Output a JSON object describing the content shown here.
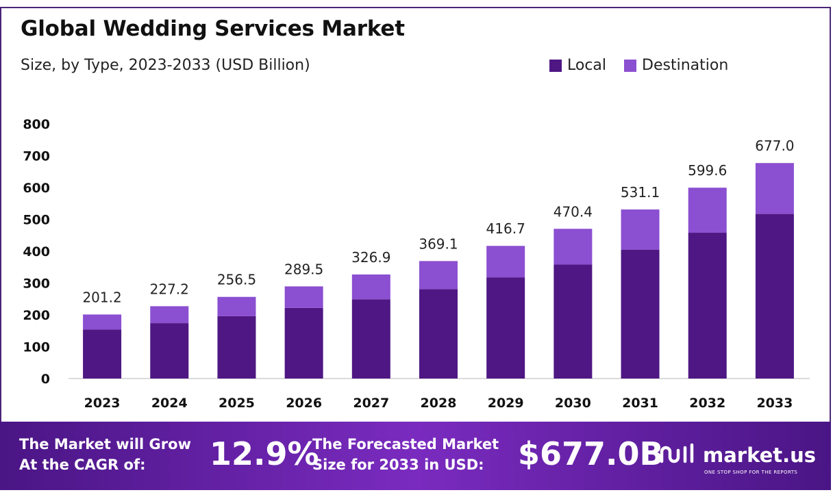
{
  "chart_data": {
    "type": "bar",
    "stacked": true,
    "title": "Global Wedding Services Market",
    "subtitle": "Size, by Type, 2023-2033 (USD Billion)",
    "categories": [
      "2023",
      "2024",
      "2025",
      "2026",
      "2027",
      "2028",
      "2029",
      "2030",
      "2031",
      "2032",
      "2033"
    ],
    "series": [
      {
        "name": "Local",
        "color": "#4e1783",
        "values": [
          154.0,
          174.0,
          196.0,
          222.0,
          249.0,
          281.0,
          318.0,
          358.0,
          405.0,
          458.0,
          517.0
        ]
      },
      {
        "name": "Destination",
        "color": "#8b4fd1",
        "values": [
          47.2,
          53.2,
          60.5,
          67.5,
          77.9,
          88.1,
          98.7,
          112.4,
          126.1,
          141.6,
          160.0
        ]
      }
    ],
    "totals": [
      "201.2",
      "227.2",
      "256.5",
      "289.5",
      "326.9",
      "369.1",
      "416.7",
      "470.4",
      "531.1",
      "599.6",
      "677.0"
    ],
    "yticks": [
      "0",
      "100",
      "200",
      "300",
      "400",
      "500",
      "600",
      "700",
      "800"
    ],
    "ylim": [
      0,
      800
    ],
    "grid": false,
    "legend_position": "top-right"
  },
  "banner": {
    "cagr_line1": "The Market will Grow",
    "cagr_line2": "At the CAGR of:",
    "cagr_value": "12.9%",
    "forecast_line1": "The Forecasted Market",
    "forecast_line2": "Size for 2033 in USD:",
    "forecast_value": "$677.0B",
    "logo_name": "market.us",
    "logo_tagline": "ONE STOP SHOP FOR THE REPORTS"
  },
  "icons": {
    "logo": "market-us-logo-icon"
  }
}
